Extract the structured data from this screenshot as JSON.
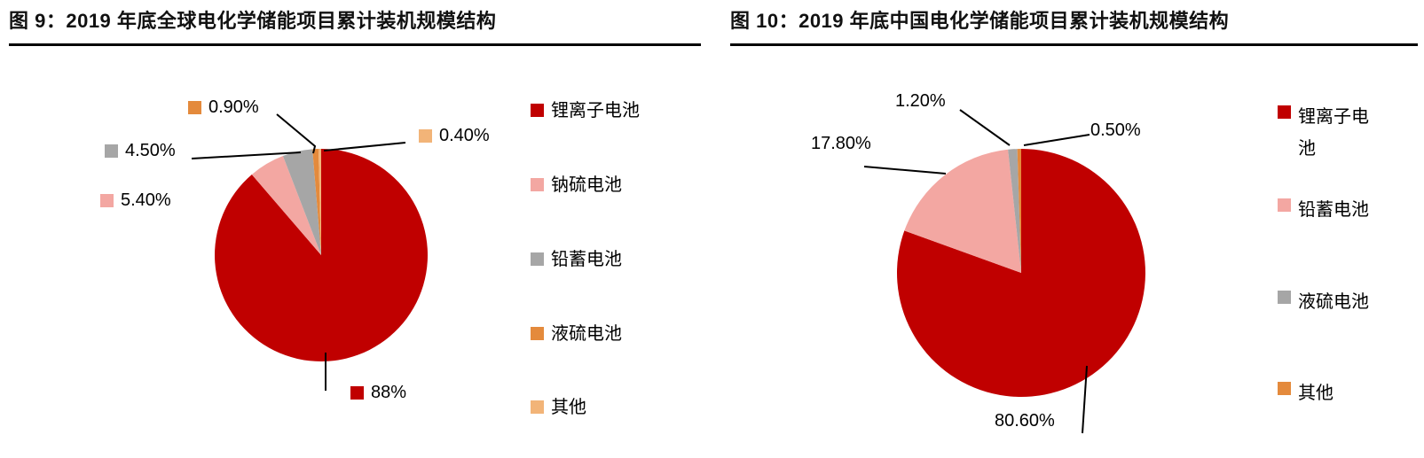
{
  "page": {
    "background": "#ffffff",
    "accent_red": "#c00000",
    "text_color": "#000000"
  },
  "chart_data": [
    {
      "type": "pie",
      "title": "图 9：2019 年底全球电化学储能项目累计装机规模结构",
      "categories": [
        "锂离子电池",
        "钠硫电池",
        "铅蓄电池",
        "液硫电池",
        "其他"
      ],
      "values": [
        88,
        5.4,
        4.5,
        0.9,
        0.4
      ],
      "labels": [
        "88%",
        "5.40%",
        "4.50%",
        "0.90%",
        "0.40%"
      ],
      "colors": [
        "#c00000",
        "#f3a7a2",
        "#a6a6a6",
        "#e48a3c",
        "#f2b478"
      ],
      "legend_position": "right",
      "start_angle_deg": 0,
      "direction": "clockwise",
      "data_labels_have_swatch": true
    },
    {
      "type": "pie",
      "title": "图 10：2019 年底中国电化学储能项目累计装机规模结构",
      "categories": [
        "锂离子电池",
        "铅蓄电池",
        "液硫电池",
        "其他"
      ],
      "values": [
        80.6,
        17.8,
        1.2,
        0.5
      ],
      "labels": [
        "80.60%",
        "17.80%",
        "1.20%",
        "0.50%"
      ],
      "colors": [
        "#c00000",
        "#f3a7a2",
        "#a6a6a6",
        "#e48a3c"
      ],
      "legend_position": "right",
      "start_angle_deg": 0,
      "direction": "clockwise",
      "data_labels_have_swatch": false
    }
  ]
}
